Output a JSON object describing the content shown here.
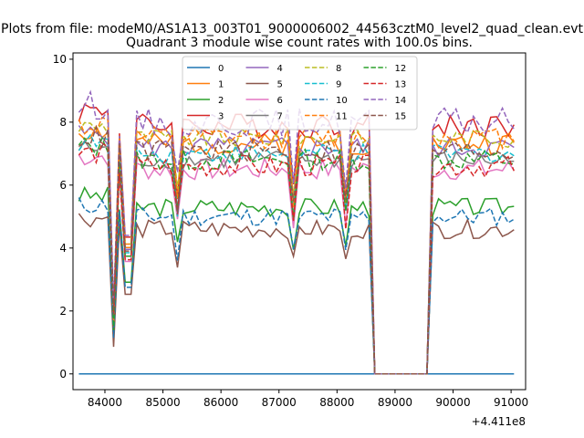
{
  "chart_data": {
    "type": "line",
    "suptitle": "Plots from file: modeM0/AS1A13_003T01_9000006002_44563cztM0_level2_quad_clean.evt",
    "title": "Quadrant 3 module wise count rates with 100.0s bins.",
    "xlabel": "",
    "ylabel": "",
    "x_offset_label": "+4.411e8",
    "x_offset": 441100000,
    "xlim": [
      83450,
      91250
    ],
    "ylim": [
      -0.5,
      10.2
    ],
    "xticks": [
      84000,
      85000,
      86000,
      87000,
      88000,
      89000,
      90000,
      91000
    ],
    "yticks": [
      0,
      2,
      4,
      6,
      8,
      10
    ],
    "grid": false,
    "legend": {
      "placement": "top-center",
      "ncol": 4
    },
    "x_range": [
      83550,
      91050
    ],
    "bin": 100,
    "gap": [
      88650,
      89550
    ],
    "series": [
      {
        "name": "0",
        "color": "#1f77b4",
        "dash": false,
        "base": 0,
        "amp": 0,
        "dips": 0,
        "seed": 1,
        "zero": true
      },
      {
        "name": "1",
        "color": "#ff7f0e",
        "dash": false,
        "base": 7.3,
        "amp": 0.35,
        "dips": 1,
        "seed": 2
      },
      {
        "name": "2",
        "color": "#2ca02c",
        "dash": false,
        "base": 5.3,
        "amp": 0.3,
        "dips": 1,
        "seed": 3
      },
      {
        "name": "3",
        "color": "#d62728",
        "dash": false,
        "base": 7.9,
        "amp": 0.4,
        "dips": 1,
        "seed": 4
      },
      {
        "name": "4",
        "color": "#9467bd",
        "dash": false,
        "base": 7.2,
        "amp": 0.35,
        "dips": 1,
        "seed": 5
      },
      {
        "name": "5",
        "color": "#8c564b",
        "dash": false,
        "base": 4.6,
        "amp": 0.3,
        "dips": 1,
        "seed": 6
      },
      {
        "name": "6",
        "color": "#e377c2",
        "dash": false,
        "base": 6.5,
        "amp": 0.35,
        "dips": 1,
        "seed": 7
      },
      {
        "name": "7",
        "color": "#7f7f7f",
        "dash": false,
        "base": 6.8,
        "amp": 0.3,
        "dips": 1,
        "seed": 8
      },
      {
        "name": "8",
        "color": "#bcbd22",
        "dash": true,
        "base": 7.5,
        "amp": 0.3,
        "dips": 1,
        "seed": 9
      },
      {
        "name": "9",
        "color": "#17becf",
        "dash": true,
        "base": 7.0,
        "amp": 0.3,
        "dips": 1,
        "seed": 10
      },
      {
        "name": "10",
        "color": "#1f77b4",
        "dash": true,
        "base": 5.0,
        "amp": 0.3,
        "dips": 1,
        "seed": 11
      },
      {
        "name": "11",
        "color": "#ff7f0e",
        "dash": true,
        "base": 7.5,
        "amp": 0.35,
        "dips": 1,
        "seed": 12
      },
      {
        "name": "12",
        "color": "#2ca02c",
        "dash": true,
        "base": 6.8,
        "amp": 0.35,
        "dips": 1,
        "seed": 13
      },
      {
        "name": "13",
        "color": "#d62728",
        "dash": true,
        "base": 6.6,
        "amp": 0.35,
        "dips": 1,
        "seed": 14
      },
      {
        "name": "14",
        "color": "#9467bd",
        "dash": true,
        "base": 8.0,
        "amp": 0.45,
        "dips": 1,
        "seed": 15
      },
      {
        "name": "15",
        "color": "#8c564b",
        "dash": true,
        "base": 7.1,
        "amp": 0.35,
        "dips": 1,
        "seed": 16
      }
    ]
  }
}
